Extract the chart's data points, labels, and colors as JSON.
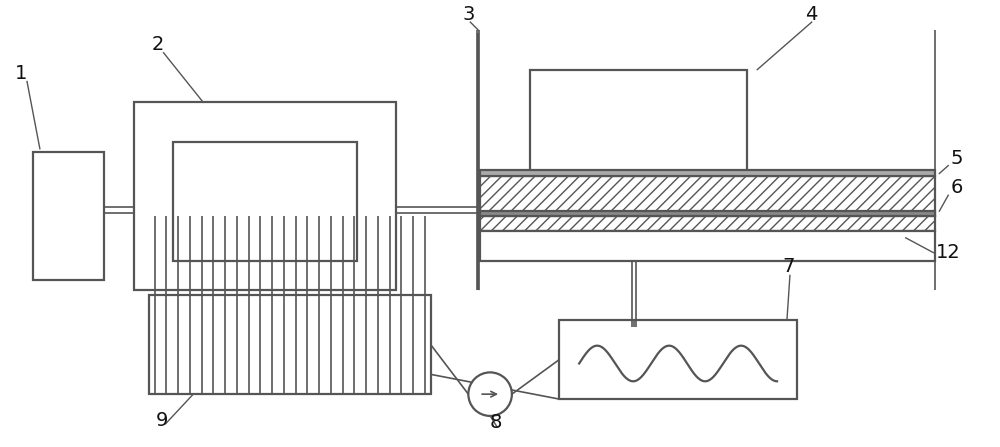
{
  "bg_color": "#ffffff",
  "line_color": "#555555",
  "label_color": "#111111"
}
